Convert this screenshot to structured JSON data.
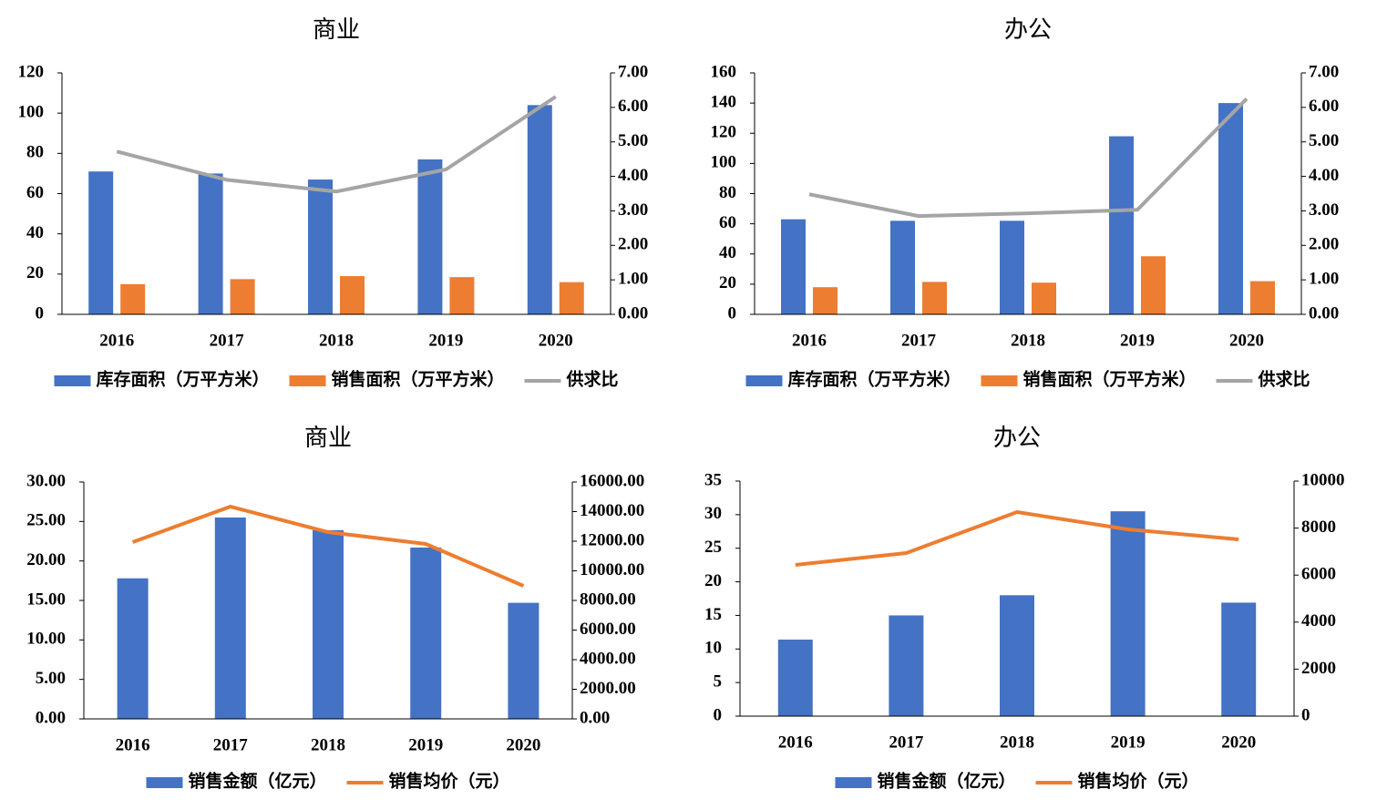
{
  "chart_data": [
    {
      "type": "bar",
      "title": "商业",
      "categories": [
        "2016",
        "2017",
        "2018",
        "2019",
        "2020"
      ],
      "series": [
        {
          "name": "库存面积（万平方米）",
          "color": "#4472c4",
          "values": [
            71,
            70,
            67,
            77,
            104
          ]
        },
        {
          "name": "销售面积（万平方米）",
          "color": "#ed7d31",
          "values": [
            15,
            17.5,
            19,
            18.5,
            16
          ]
        },
        {
          "name": "供求比",
          "color": "#a5a5a5",
          "type": "line",
          "axis": "y2",
          "values": [
            4.72,
            3.9,
            3.56,
            4.2,
            6.31
          ]
        }
      ],
      "ylim": [
        0,
        120
      ],
      "yticks": [
        0,
        20,
        40,
        60,
        80,
        100,
        120
      ],
      "y2lim": [
        0,
        7
      ],
      "y2ticks": [
        {
          "value": 0,
          "label": "0.00"
        },
        {
          "value": 1,
          "label": "1.00"
        },
        {
          "value": 2,
          "label": "2.00"
        },
        {
          "value": 3,
          "label": "3.00"
        },
        {
          "value": 4,
          "label": "4.00"
        },
        {
          "value": 5,
          "label": "5.00"
        },
        {
          "value": 6,
          "label": "6.00"
        },
        {
          "value": 7,
          "label": "7.00"
        }
      ],
      "legend": "bottom"
    },
    {
      "type": "bar",
      "title": "办公",
      "categories": [
        "2016",
        "2017",
        "2018",
        "2019",
        "2020"
      ],
      "series": [
        {
          "name": "库存面积（万平方米）",
          "color": "#4472c4",
          "values": [
            63,
            62,
            62,
            118,
            140
          ]
        },
        {
          "name": "销售面积（万平方米）",
          "color": "#ed7d31",
          "values": [
            18,
            21.5,
            21,
            38.5,
            22
          ]
        },
        {
          "name": "供求比",
          "color": "#a5a5a5",
          "type": "line",
          "axis": "y2",
          "values": [
            3.48,
            2.85,
            2.93,
            3.03,
            6.25
          ]
        }
      ],
      "ylim": [
        0,
        160
      ],
      "yticks": [
        0,
        20,
        40,
        60,
        80,
        100,
        120,
        140,
        160
      ],
      "y2lim": [
        0,
        7
      ],
      "y2ticks": [
        {
          "value": 0,
          "label": "0.00"
        },
        {
          "value": 1,
          "label": "1.00"
        },
        {
          "value": 2,
          "label": "2.00"
        },
        {
          "value": 3,
          "label": "3.00"
        },
        {
          "value": 4,
          "label": "4.00"
        },
        {
          "value": 5,
          "label": "5.00"
        },
        {
          "value": 6,
          "label": "6.00"
        },
        {
          "value": 7,
          "label": "7.00"
        }
      ],
      "legend": "bottom"
    },
    {
      "type": "bar",
      "title": "商业",
      "categories": [
        "2016",
        "2017",
        "2018",
        "2019",
        "2020"
      ],
      "series": [
        {
          "name": "销售金额（亿元）",
          "color": "#4472c4",
          "values": [
            17.8,
            25.5,
            23.9,
            21.7,
            14.7
          ]
        },
        {
          "name": "销售均价（元）",
          "color": "#ed7d31",
          "type": "line",
          "axis": "y2",
          "values": [
            11938,
            14338,
            12615,
            11815,
            8985
          ]
        }
      ],
      "ylim": [
        0,
        30
      ],
      "yticks": [
        {
          "value": 0,
          "label": "0.00"
        },
        {
          "value": 5,
          "label": "5.00"
        },
        {
          "value": 10,
          "label": "10.00"
        },
        {
          "value": 15,
          "label": "15.00"
        },
        {
          "value": 20,
          "label": "20.00"
        },
        {
          "value": 25,
          "label": "25.00"
        },
        {
          "value": 30,
          "label": "30.00"
        }
      ],
      "y2lim": [
        0,
        16000
      ],
      "y2ticks": [
        {
          "value": 0,
          "label": "0.00"
        },
        {
          "value": 2000,
          "label": "2000.00"
        },
        {
          "value": 4000,
          "label": "4000.00"
        },
        {
          "value": 6000,
          "label": "6000.00"
        },
        {
          "value": 8000,
          "label": "8000.00"
        },
        {
          "value": 10000,
          "label": "10000.00"
        },
        {
          "value": 12000,
          "label": "12000.00"
        },
        {
          "value": 14000,
          "label": "14000.00"
        },
        {
          "value": 16000,
          "label": "16000.00"
        }
      ],
      "legend": "bottom"
    },
    {
      "type": "bar",
      "title": "办公",
      "categories": [
        "2016",
        "2017",
        "2018",
        "2019",
        "2020"
      ],
      "series": [
        {
          "name": "销售金额（亿元）",
          "color": "#4472c4",
          "values": [
            11.4,
            15,
            18,
            30.5,
            16.9
          ]
        },
        {
          "name": "销售均价（元）",
          "color": "#ed7d31",
          "type": "line",
          "axis": "y2",
          "values": [
            6434,
            6938,
            8682,
            7946,
            7519
          ]
        }
      ],
      "ylim": [
        0,
        35
      ],
      "yticks": [
        0,
        5,
        10,
        15,
        20,
        25,
        30,
        35
      ],
      "y2lim": [
        0,
        10000
      ],
      "y2ticks": [
        0,
        2000,
        4000,
        6000,
        8000,
        10000
      ],
      "legend": "bottom"
    }
  ]
}
